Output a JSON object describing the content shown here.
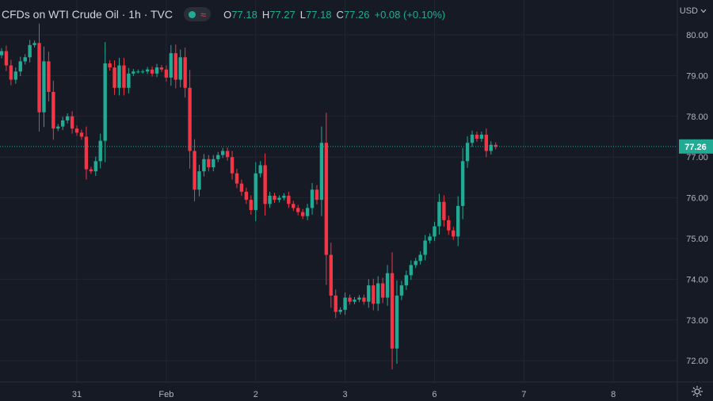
{
  "header": {
    "title": "CFDs on WTI Crude Oil · 1h · TVC",
    "ohlc": [
      {
        "key": "O",
        "value": "77.18"
      },
      {
        "key": "H",
        "value": "77.27"
      },
      {
        "key": "L",
        "value": "77.18"
      },
      {
        "key": "C",
        "value": "77.26"
      }
    ],
    "change": "+0.08 (+0.10%)",
    "currency": "USD"
  },
  "icons": [
    "status-dot-icon",
    "wave-icon",
    "chevron-down-icon",
    "gear-icon"
  ],
  "colors": {
    "background": "#161a25",
    "up": "#22ab94",
    "down": "#f23645",
    "grid": "#232632",
    "text": "#b2b5be"
  },
  "chart_data": {
    "type": "candlestick",
    "title": "CFDs on WTI Crude Oil · 1h · TVC",
    "xlabel": "",
    "ylabel": "",
    "ylim": [
      71.8,
      80.2
    ],
    "y_ticks": [
      "80.00",
      "79.00",
      "78.00",
      "77.00",
      "76.00",
      "75.00",
      "74.00",
      "73.00",
      "72.00"
    ],
    "x_ticks": [
      {
        "label": "31",
        "index": 16
      },
      {
        "label": "Feb",
        "index": 35
      },
      {
        "label": "2",
        "index": 54
      },
      {
        "label": "3",
        "index": 73
      },
      {
        "label": "6",
        "index": 92
      },
      {
        "label": "7",
        "index": 111
      },
      {
        "label": "8",
        "index": 130
      }
    ],
    "last_price": "77.26",
    "grid": true,
    "closes": [
      79.6,
      79.25,
      78.9,
      79.1,
      79.35,
      79.45,
      79.75,
      79.8,
      78.1,
      79.35,
      78.6,
      77.7,
      77.75,
      77.9,
      78,
      77.7,
      77.6,
      77.5,
      76.7,
      76.65,
      76.9,
      77.4,
      79.3,
      79.2,
      78.7,
      79.25,
      78.7,
      79.05,
      79.1,
      79.1,
      79.1,
      79.15,
      79.05,
      79.2,
      79.15,
      78.95,
      79.55,
      78.9,
      79.45,
      78.7,
      77.15,
      76.2,
      76.65,
      76.95,
      76.75,
      76.95,
      77.05,
      77.15,
      77,
      76.6,
      76.35,
      76.15,
      75.95,
      75.7,
      76.6,
      76.8,
      75.85,
      76.05,
      75.95,
      76,
      76.05,
      75.85,
      75.75,
      75.65,
      75.55,
      75.75,
      76.2,
      75.95,
      77.35,
      74.6,
      73.6,
      73.2,
      73.25,
      73.55,
      73.45,
      73.5,
      73.55,
      73.45,
      73.85,
      73.4,
      73.9,
      73.55,
      74.15,
      72.3,
      73.6,
      73.85,
      74.1,
      74.35,
      74.45,
      74.6,
      74.95,
      75.05,
      75.3,
      75.9,
      75.45,
      75.2,
      75.05,
      75.8,
      76.9,
      77.35,
      77.55,
      77.45,
      77.55,
      77.15,
      77.3,
      77.25
    ]
  }
}
